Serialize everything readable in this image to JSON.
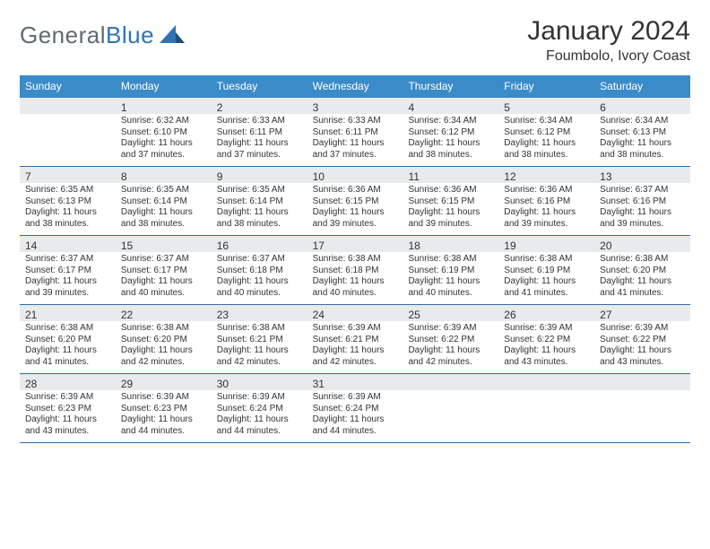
{
  "brand": {
    "part1": "General",
    "part2": "Blue"
  },
  "title": "January 2024",
  "location": "Foumbolo, Ivory Coast",
  "colors": {
    "header_bg": "#3b8bc9",
    "header_text": "#ffffff",
    "daynum_bg": "#e9eaeb",
    "week_border": "#2f6fa6",
    "text": "#333333",
    "logo_gray": "#5f6a72",
    "logo_blue": "#2f74b5",
    "page_bg": "#ffffff"
  },
  "typography": {
    "title_fontsize": 30,
    "location_fontsize": 16,
    "logo_fontsize": 26,
    "dow_fontsize": 12,
    "daynum_fontsize": 12,
    "body_fontsize": 10
  },
  "dow": [
    "Sunday",
    "Monday",
    "Tuesday",
    "Wednesday",
    "Thursday",
    "Friday",
    "Saturday"
  ],
  "weeks": [
    [
      {
        "n": "",
        "sunrise": "",
        "sunset": "",
        "daylight": ""
      },
      {
        "n": "1",
        "sunrise": "Sunrise: 6:32 AM",
        "sunset": "Sunset: 6:10 PM",
        "daylight": "Daylight: 11 hours and 37 minutes."
      },
      {
        "n": "2",
        "sunrise": "Sunrise: 6:33 AM",
        "sunset": "Sunset: 6:11 PM",
        "daylight": "Daylight: 11 hours and 37 minutes."
      },
      {
        "n": "3",
        "sunrise": "Sunrise: 6:33 AM",
        "sunset": "Sunset: 6:11 PM",
        "daylight": "Daylight: 11 hours and 37 minutes."
      },
      {
        "n": "4",
        "sunrise": "Sunrise: 6:34 AM",
        "sunset": "Sunset: 6:12 PM",
        "daylight": "Daylight: 11 hours and 38 minutes."
      },
      {
        "n": "5",
        "sunrise": "Sunrise: 6:34 AM",
        "sunset": "Sunset: 6:12 PM",
        "daylight": "Daylight: 11 hours and 38 minutes."
      },
      {
        "n": "6",
        "sunrise": "Sunrise: 6:34 AM",
        "sunset": "Sunset: 6:13 PM",
        "daylight": "Daylight: 11 hours and 38 minutes."
      }
    ],
    [
      {
        "n": "7",
        "sunrise": "Sunrise: 6:35 AM",
        "sunset": "Sunset: 6:13 PM",
        "daylight": "Daylight: 11 hours and 38 minutes."
      },
      {
        "n": "8",
        "sunrise": "Sunrise: 6:35 AM",
        "sunset": "Sunset: 6:14 PM",
        "daylight": "Daylight: 11 hours and 38 minutes."
      },
      {
        "n": "9",
        "sunrise": "Sunrise: 6:35 AM",
        "sunset": "Sunset: 6:14 PM",
        "daylight": "Daylight: 11 hours and 38 minutes."
      },
      {
        "n": "10",
        "sunrise": "Sunrise: 6:36 AM",
        "sunset": "Sunset: 6:15 PM",
        "daylight": "Daylight: 11 hours and 39 minutes."
      },
      {
        "n": "11",
        "sunrise": "Sunrise: 6:36 AM",
        "sunset": "Sunset: 6:15 PM",
        "daylight": "Daylight: 11 hours and 39 minutes."
      },
      {
        "n": "12",
        "sunrise": "Sunrise: 6:36 AM",
        "sunset": "Sunset: 6:16 PM",
        "daylight": "Daylight: 11 hours and 39 minutes."
      },
      {
        "n": "13",
        "sunrise": "Sunrise: 6:37 AM",
        "sunset": "Sunset: 6:16 PM",
        "daylight": "Daylight: 11 hours and 39 minutes."
      }
    ],
    [
      {
        "n": "14",
        "sunrise": "Sunrise: 6:37 AM",
        "sunset": "Sunset: 6:17 PM",
        "daylight": "Daylight: 11 hours and 39 minutes."
      },
      {
        "n": "15",
        "sunrise": "Sunrise: 6:37 AM",
        "sunset": "Sunset: 6:17 PM",
        "daylight": "Daylight: 11 hours and 40 minutes."
      },
      {
        "n": "16",
        "sunrise": "Sunrise: 6:37 AM",
        "sunset": "Sunset: 6:18 PM",
        "daylight": "Daylight: 11 hours and 40 minutes."
      },
      {
        "n": "17",
        "sunrise": "Sunrise: 6:38 AM",
        "sunset": "Sunset: 6:18 PM",
        "daylight": "Daylight: 11 hours and 40 minutes."
      },
      {
        "n": "18",
        "sunrise": "Sunrise: 6:38 AM",
        "sunset": "Sunset: 6:19 PM",
        "daylight": "Daylight: 11 hours and 40 minutes."
      },
      {
        "n": "19",
        "sunrise": "Sunrise: 6:38 AM",
        "sunset": "Sunset: 6:19 PM",
        "daylight": "Daylight: 11 hours and 41 minutes."
      },
      {
        "n": "20",
        "sunrise": "Sunrise: 6:38 AM",
        "sunset": "Sunset: 6:20 PM",
        "daylight": "Daylight: 11 hours and 41 minutes."
      }
    ],
    [
      {
        "n": "21",
        "sunrise": "Sunrise: 6:38 AM",
        "sunset": "Sunset: 6:20 PM",
        "daylight": "Daylight: 11 hours and 41 minutes."
      },
      {
        "n": "22",
        "sunrise": "Sunrise: 6:38 AM",
        "sunset": "Sunset: 6:20 PM",
        "daylight": "Daylight: 11 hours and 42 minutes."
      },
      {
        "n": "23",
        "sunrise": "Sunrise: 6:38 AM",
        "sunset": "Sunset: 6:21 PM",
        "daylight": "Daylight: 11 hours and 42 minutes."
      },
      {
        "n": "24",
        "sunrise": "Sunrise: 6:39 AM",
        "sunset": "Sunset: 6:21 PM",
        "daylight": "Daylight: 11 hours and 42 minutes."
      },
      {
        "n": "25",
        "sunrise": "Sunrise: 6:39 AM",
        "sunset": "Sunset: 6:22 PM",
        "daylight": "Daylight: 11 hours and 42 minutes."
      },
      {
        "n": "26",
        "sunrise": "Sunrise: 6:39 AM",
        "sunset": "Sunset: 6:22 PM",
        "daylight": "Daylight: 11 hours and 43 minutes."
      },
      {
        "n": "27",
        "sunrise": "Sunrise: 6:39 AM",
        "sunset": "Sunset: 6:22 PM",
        "daylight": "Daylight: 11 hours and 43 minutes."
      }
    ],
    [
      {
        "n": "28",
        "sunrise": "Sunrise: 6:39 AM",
        "sunset": "Sunset: 6:23 PM",
        "daylight": "Daylight: 11 hours and 43 minutes."
      },
      {
        "n": "29",
        "sunrise": "Sunrise: 6:39 AM",
        "sunset": "Sunset: 6:23 PM",
        "daylight": "Daylight: 11 hours and 44 minutes."
      },
      {
        "n": "30",
        "sunrise": "Sunrise: 6:39 AM",
        "sunset": "Sunset: 6:24 PM",
        "daylight": "Daylight: 11 hours and 44 minutes."
      },
      {
        "n": "31",
        "sunrise": "Sunrise: 6:39 AM",
        "sunset": "Sunset: 6:24 PM",
        "daylight": "Daylight: 11 hours and 44 minutes."
      },
      {
        "n": "",
        "sunrise": "",
        "sunset": "",
        "daylight": ""
      },
      {
        "n": "",
        "sunrise": "",
        "sunset": "",
        "daylight": ""
      },
      {
        "n": "",
        "sunrise": "",
        "sunset": "",
        "daylight": ""
      }
    ]
  ]
}
